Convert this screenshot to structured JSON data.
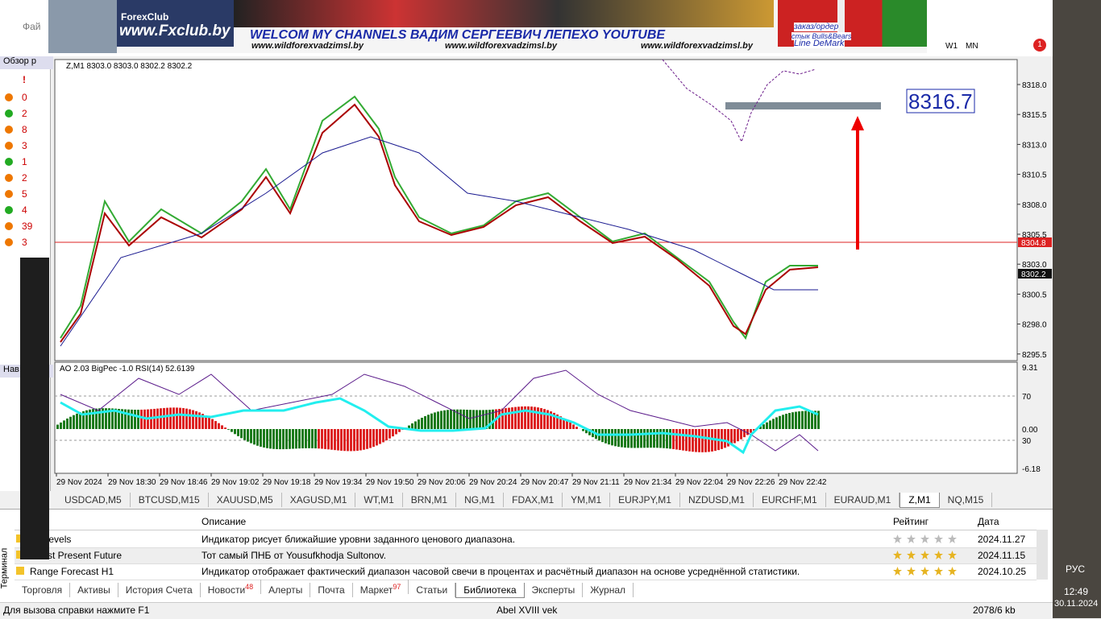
{
  "banner": {
    "brand": "ForexClub",
    "site": "www.Fxclub.by",
    "headline": "WELCOM MY CHANNELS ВАДИМ СЕРГЕЕВИЧ ЛЕПЕХО YOUTUBE",
    "urls": [
      "www.wildforexvadzimsl.by",
      "www.wildforexvadzimsl.by",
      "www.wildforexvadzimsl.by"
    ],
    "order": [
      "заказ/ордер",
      "стык Bulls&Bears",
      "Line DeMark"
    ]
  },
  "menu": {
    "file": "Фай"
  },
  "toolbar": {
    "periods": [
      "W1",
      "MN"
    ],
    "notifications": "1"
  },
  "market_watch": {
    "title": "Обзор р",
    "mark": "!",
    "counts": [
      "0",
      "2",
      "8",
      "3",
      "1",
      "2",
      "5",
      "4",
      "39",
      "3"
    ]
  },
  "navigator": {
    "title": "Нав"
  },
  "chart": {
    "header": "Z,M1  8303.0 8303.0 8302.2 8302.2",
    "price_axis": [
      "8318.0",
      "8315.5",
      "8313.0",
      "8310.5",
      "8308.0",
      "8305.5",
      "8303.0",
      "8300.5",
      "8298.0",
      "8295.5"
    ],
    "bid_label": "8304.8",
    "last_label": "8302.2",
    "target": "8316.7",
    "indicator_header": "AO 2.03  BigPec -1.0  RSI(14) 52.6139",
    "indicator_axis": [
      "9.31",
      "70",
      "0.00",
      "30",
      "-6.18"
    ],
    "time_axis": [
      "29 Nov 2024",
      "29 Nov 18:30",
      "29 Nov 18:46",
      "29 Nov 19:02",
      "29 Nov 19:18",
      "29 Nov 19:34",
      "29 Nov 19:50",
      "29 Nov 20:06",
      "29 Nov 20:24",
      "29 Nov 20:47",
      "29 Nov 21:11",
      "29 Nov 21:34",
      "29 Nov 22:04",
      "29 Nov 22:26",
      "29 Nov 22:42"
    ]
  },
  "chart_tabs": [
    "USDCAD,M5",
    "BTCUSD,M15",
    "XAUUSD,M5",
    "XAGUSD,M1",
    "WT,M1",
    "BRN,M1",
    "NG,M1",
    "FDAX,M1",
    "YM,M1",
    "EURJPY,M1",
    "NZDUSD,M1",
    "EURCHF,M1",
    "EURAUD,M1",
    "Z,M1",
    "NQ,M15"
  ],
  "terminal": {
    "label": "Терминал",
    "columns": [
      "Описание",
      "Рейтинг",
      "Дата"
    ],
    "rows": [
      [
        "ge Levels",
        "Индикатор рисует ближайшие уровни заданного ценового диапазона.",
        "2024.11.27"
      ],
      [
        "- Past Present Future",
        "Тот самый ПНБ от Yousufkhodja Sultonov.",
        "2024.11.15"
      ],
      [
        "Range Forecast H1",
        "Индикатор отображает фактический диапазон часовой свечи в процентах и расчётный диапазон на основе усреднённой статистики.",
        "2024.10.25"
      ]
    ],
    "tabs": [
      {
        "label": "Торговля"
      },
      {
        "label": "Активы"
      },
      {
        "label": "История Счета"
      },
      {
        "label": "Новости",
        "badge": "48"
      },
      {
        "label": "Алерты"
      },
      {
        "label": "Почта"
      },
      {
        "label": "Маркет",
        "badge": "97"
      },
      {
        "label": "Статьи"
      },
      {
        "label": "Библиотека"
      },
      {
        "label": "Эксперты"
      },
      {
        "label": "Журнал"
      }
    ]
  },
  "status": {
    "help": "Для вызова справки нажмите F1",
    "profile": "Abel XVIII vek",
    "traffic": "2078/6 kb"
  },
  "taskbar": {
    "lang": "РУС",
    "time": "12:49",
    "date": "30.11.2024"
  }
}
